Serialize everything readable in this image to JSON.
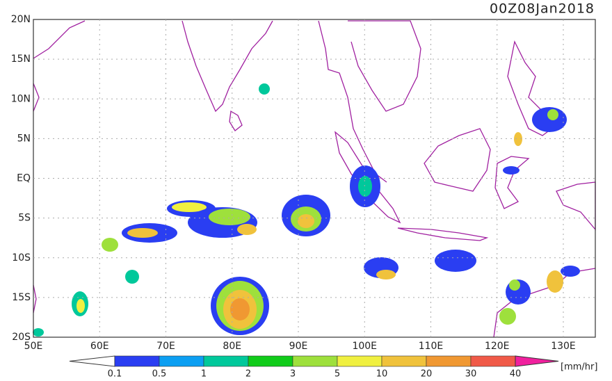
{
  "title": "00Z08Jan2018",
  "lat_labels": [
    "20N",
    "15N",
    "10N",
    "5N",
    "EQ",
    "5S",
    "10S",
    "15S",
    "20S"
  ],
  "lon_labels": [
    "50E",
    "60E",
    "70E",
    "80E",
    "90E",
    "100E",
    "110E",
    "120E",
    "130E"
  ],
  "colorbar": {
    "labels": [
      "0.1",
      "0.5",
      "1",
      "2",
      "3",
      "5",
      "10",
      "20",
      "30",
      "40"
    ],
    "colors": [
      "#2a3ef2",
      "#0c9ff2",
      "#00c89b",
      "#10cc1a",
      "#9ee03c",
      "#f0f040",
      "#f0c23c",
      "#f09832",
      "#f05a48",
      "#f0209e"
    ],
    "unit": "[mm/hr]"
  }
}
